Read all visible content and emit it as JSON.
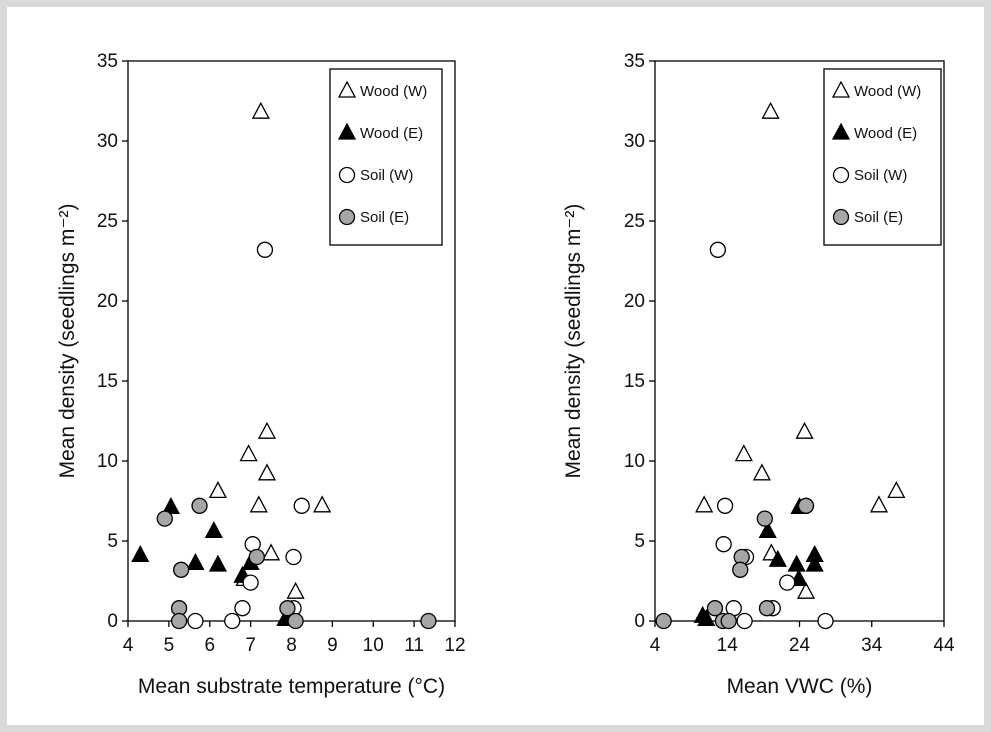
{
  "chart_data": [
    {
      "type": "scatter",
      "xlabel": "Mean substrate temperature (°C)",
      "ylabel": "Mean density (seedlings  m⁻²)",
      "xlim": [
        4,
        12
      ],
      "ylim": [
        0,
        35
      ],
      "xticks": [
        "4",
        "5",
        "6",
        "7",
        "8",
        "9",
        "10",
        "11",
        "12"
      ],
      "yticks": [
        "0",
        "5",
        "10",
        "15",
        "20",
        "25",
        "30",
        "35"
      ],
      "legend_position": "top-right",
      "series": [
        {
          "name": "Wood (W)",
          "marker": "triangle-open",
          "points": [
            [
              7.25,
              31.8
            ],
            [
              6.2,
              8.1
            ],
            [
              6.95,
              10.4
            ],
            [
              7.4,
              11.8
            ],
            [
              7.4,
              9.2
            ],
            [
              7.2,
              7.2
            ],
            [
              8.75,
              7.2
            ],
            [
              7.5,
              4.2
            ],
            [
              8.1,
              1.8
            ],
            [
              6.85,
              2.6
            ]
          ]
        },
        {
          "name": "Wood (E)",
          "marker": "triangle-filled",
          "points": [
            [
              4.3,
              4.1
            ],
            [
              5.05,
              7.1
            ],
            [
              6.1,
              5.6
            ],
            [
              5.65,
              3.6
            ],
            [
              6.2,
              3.5
            ],
            [
              7.0,
              3.6
            ],
            [
              7.1,
              4.1
            ],
            [
              6.8,
              2.8
            ],
            [
              7.85,
              0.1
            ]
          ]
        },
        {
          "name": "Soil (W)",
          "marker": "circle-open",
          "points": [
            [
              7.35,
              23.2
            ],
            [
              8.25,
              7.2
            ],
            [
              7.05,
              4.8
            ],
            [
              8.05,
              4.0
            ],
            [
              7.0,
              2.4
            ],
            [
              6.8,
              0.8
            ],
            [
              8.05,
              0.8
            ],
            [
              5.65,
              0.0
            ],
            [
              6.55,
              0.0
            ]
          ]
        },
        {
          "name": "Soil (E)",
          "marker": "circle-grey",
          "points": [
            [
              4.9,
              6.4
            ],
            [
              5.75,
              7.2
            ],
            [
              5.3,
              3.2
            ],
            [
              7.15,
              4.0
            ],
            [
              5.25,
              0.8
            ],
            [
              5.25,
              0.0
            ],
            [
              7.9,
              0.8
            ],
            [
              8.1,
              0.0
            ],
            [
              11.35,
              0.0
            ]
          ]
        }
      ]
    },
    {
      "type": "scatter",
      "xlabel": "Mean VWC (%)",
      "ylabel": "Mean density (seedlings  m⁻²)",
      "xlim": [
        4,
        44
      ],
      "ylim": [
        0,
        35
      ],
      "xticks": [
        "4",
        "14",
        "24",
        "34",
        "44"
      ],
      "yticks": [
        "0",
        "5",
        "10",
        "15",
        "20",
        "25",
        "30",
        "35"
      ],
      "legend_position": "top-right",
      "series": [
        {
          "name": "Wood (W)",
          "marker": "triangle-open",
          "points": [
            [
              20,
              31.8
            ],
            [
              16.3,
              10.4
            ],
            [
              24.7,
              11.8
            ],
            [
              18.8,
              9.2
            ],
            [
              10.8,
              7.2
            ],
            [
              35,
              7.2
            ],
            [
              37.4,
              8.1
            ],
            [
              20.1,
              4.2
            ],
            [
              24.9,
              1.8
            ]
          ]
        },
        {
          "name": "Wood (E)",
          "marker": "triangle-filled",
          "points": [
            [
              19.6,
              5.6
            ],
            [
              24,
              7.1
            ],
            [
              21,
              3.8
            ],
            [
              23.6,
              3.5
            ],
            [
              26.1,
              4.1
            ],
            [
              26.1,
              3.5
            ],
            [
              23.9,
              2.6
            ],
            [
              10.6,
              0.3
            ],
            [
              11.1,
              0.1
            ]
          ]
        },
        {
          "name": "Soil (W)",
          "marker": "circle-open",
          "points": [
            [
              12.7,
              23.2
            ],
            [
              13.7,
              7.2
            ],
            [
              13.5,
              4.8
            ],
            [
              16.6,
              4.0
            ],
            [
              22.3,
              2.4
            ],
            [
              14.9,
              0.8
            ],
            [
              20.3,
              0.8
            ],
            [
              16.4,
              0.0
            ],
            [
              27.6,
              0.0
            ]
          ]
        },
        {
          "name": "Soil (E)",
          "marker": "circle-grey",
          "points": [
            [
              19.2,
              6.4
            ],
            [
              24.9,
              7.2
            ],
            [
              16,
              4.0
            ],
            [
              15.8,
              3.2
            ],
            [
              12.3,
              0.8
            ],
            [
              19.5,
              0.8
            ],
            [
              5.2,
              0.0
            ],
            [
              13.4,
              0.0
            ],
            [
              14.2,
              0.0
            ]
          ]
        }
      ]
    }
  ]
}
